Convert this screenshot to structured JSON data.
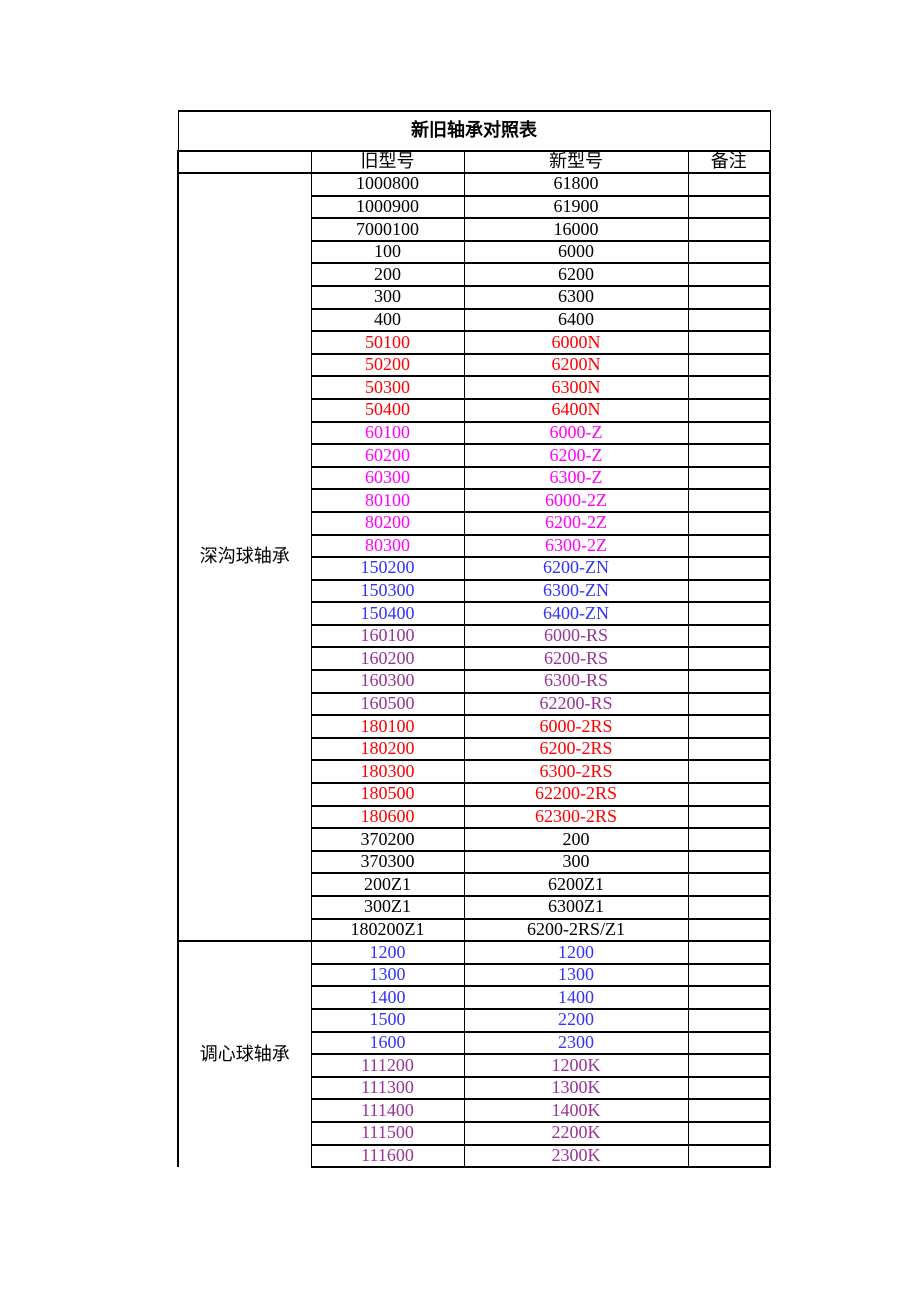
{
  "page": {
    "background": "#ffffff"
  },
  "table": {
    "title": "新旧轴承对照表",
    "headers": {
      "category": "",
      "old": "旧型号",
      "new": "新型号",
      "remark": "备注"
    },
    "colors": {
      "black": "#000000",
      "red": "#ff0000",
      "magenta": "#ff00ff",
      "blue": "#3333ff",
      "purple": "#993399"
    },
    "sections": [
      {
        "category": "深沟球轴承",
        "rows": [
          {
            "old": "1000800",
            "new": "61800",
            "remark": "",
            "color": "black"
          },
          {
            "old": "1000900",
            "new": "61900",
            "remark": "",
            "color": "black"
          },
          {
            "old": "7000100",
            "new": "16000",
            "remark": "",
            "color": "black"
          },
          {
            "old": "100",
            "new": "6000",
            "remark": "",
            "color": "black"
          },
          {
            "old": "200",
            "new": "6200",
            "remark": "",
            "color": "black"
          },
          {
            "old": "300",
            "new": "6300",
            "remark": "",
            "color": "black"
          },
          {
            "old": "400",
            "new": "6400",
            "remark": "",
            "color": "black"
          },
          {
            "old": "50100",
            "new": "6000N",
            "remark": "",
            "color": "red"
          },
          {
            "old": "50200",
            "new": "6200N",
            "remark": "",
            "color": "red"
          },
          {
            "old": "50300",
            "new": "6300N",
            "remark": "",
            "color": "red"
          },
          {
            "old": "50400",
            "new": "6400N",
            "remark": "",
            "color": "red"
          },
          {
            "old": "60100",
            "new": "6000-Z",
            "remark": "",
            "color": "magenta"
          },
          {
            "old": "60200",
            "new": "6200-Z",
            "remark": "",
            "color": "magenta"
          },
          {
            "old": "60300",
            "new": "6300-Z",
            "remark": "",
            "color": "magenta"
          },
          {
            "old": "80100",
            "new": "6000-2Z",
            "remark": "",
            "color": "magenta"
          },
          {
            "old": "80200",
            "new": "6200-2Z",
            "remark": "",
            "color": "magenta"
          },
          {
            "old": "80300",
            "new": "6300-2Z",
            "remark": "",
            "color": "magenta"
          },
          {
            "old": "150200",
            "new": "6200-ZN",
            "remark": "",
            "color": "blue"
          },
          {
            "old": "150300",
            "new": "6300-ZN",
            "remark": "",
            "color": "blue"
          },
          {
            "old": "150400",
            "new": "6400-ZN",
            "remark": "",
            "color": "blue"
          },
          {
            "old": "160100",
            "new": "6000-RS",
            "remark": "",
            "color": "purple"
          },
          {
            "old": "160200",
            "new": "6200-RS",
            "remark": "",
            "color": "purple"
          },
          {
            "old": "160300",
            "new": "6300-RS",
            "remark": "",
            "color": "purple"
          },
          {
            "old": "160500",
            "new": "62200-RS",
            "remark": "",
            "color": "purple"
          },
          {
            "old": "180100",
            "new": "6000-2RS",
            "remark": "",
            "color": "red"
          },
          {
            "old": "180200",
            "new": "6200-2RS",
            "remark": "",
            "color": "red"
          },
          {
            "old": "180300",
            "new": "6300-2RS",
            "remark": "",
            "color": "red"
          },
          {
            "old": "180500",
            "new": "62200-2RS",
            "remark": "",
            "color": "red"
          },
          {
            "old": "180600",
            "new": "62300-2RS",
            "remark": "",
            "color": "red"
          },
          {
            "old": "370200",
            "new": "200",
            "remark": "",
            "color": "black"
          },
          {
            "old": "370300",
            "new": "300",
            "remark": "",
            "color": "black"
          },
          {
            "old": "200Z1",
            "new": "6200Z1",
            "remark": "",
            "color": "black"
          },
          {
            "old": "300Z1",
            "new": "6300Z1",
            "remark": "",
            "color": "black"
          },
          {
            "old": "180200Z1",
            "new": "6200-2RS/Z1",
            "remark": "",
            "color": "black"
          }
        ]
      },
      {
        "category": "调心球轴承",
        "rows": [
          {
            "old": "1200",
            "new": "1200",
            "remark": "",
            "color": "blue"
          },
          {
            "old": "1300",
            "new": "1300",
            "remark": "",
            "color": "blue"
          },
          {
            "old": "1400",
            "new": "1400",
            "remark": "",
            "color": "blue"
          },
          {
            "old": "1500",
            "new": "2200",
            "remark": "",
            "color": "blue"
          },
          {
            "old": "1600",
            "new": "2300",
            "remark": "",
            "color": "blue"
          },
          {
            "old": "111200",
            "new": "1200K",
            "remark": "",
            "color": "purple"
          },
          {
            "old": "111300",
            "new": "1300K",
            "remark": "",
            "color": "purple"
          },
          {
            "old": "111400",
            "new": "1400K",
            "remark": "",
            "color": "purple"
          },
          {
            "old": "111500",
            "new": "2200K",
            "remark": "",
            "color": "purple"
          },
          {
            "old": "111600",
            "new": "2300K",
            "remark": "",
            "color": "purple"
          }
        ]
      }
    ]
  }
}
